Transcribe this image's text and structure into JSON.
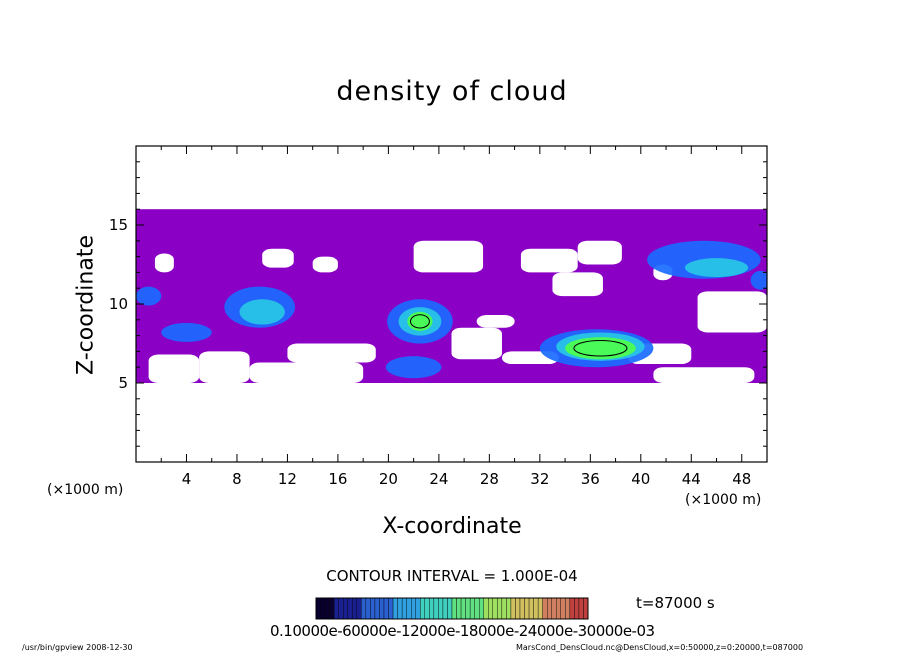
{
  "chart_data": {
    "type": "heatmap",
    "title": "density of cloud",
    "xlabel": "X-coordinate",
    "ylabel": "Z-coordinate",
    "x_unit_label": "(×1000 m)",
    "x_ticks": [
      4,
      8,
      12,
      16,
      20,
      24,
      28,
      32,
      36,
      40,
      44,
      48
    ],
    "y_ticks": [
      5,
      10,
      15
    ],
    "xlim": [
      0,
      50
    ],
    "ylim": [
      0,
      20
    ],
    "contour_interval_text": "CONTOUR INTERVAL = 1.000E-04",
    "time_text": "t=87000 s",
    "colorbar_labels_text": "0.10000e-60000e-12000e-18000e-24000e-30000e-03",
    "grid": false,
    "density_layer": {
      "z_range": [
        5,
        16
      ],
      "low_level_fill": "#8a00c4",
      "clear_regions": [
        {
          "x": [
            1.5,
            3.0
          ],
          "z": [
            12.0,
            13.2
          ]
        },
        {
          "x": [
            10.0,
            12.5
          ],
          "z": [
            12.3,
            13.5
          ]
        },
        {
          "x": [
            14.0,
            16.0
          ],
          "z": [
            12.0,
            13.0
          ]
        },
        {
          "x": [
            22.0,
            27.5
          ],
          "z": [
            12.0,
            14.0
          ]
        },
        {
          "x": [
            33.0,
            37.0
          ],
          "z": [
            10.5,
            12.0
          ]
        },
        {
          "x": [
            30.5,
            35.0
          ],
          "z": [
            12.0,
            13.5
          ]
        },
        {
          "x": [
            35.0,
            38.5
          ],
          "z": [
            12.5,
            14.0
          ]
        },
        {
          "x": [
            41.0,
            42.5
          ],
          "z": [
            11.5,
            12.5
          ]
        },
        {
          "x": [
            44.5,
            50.0
          ],
          "z": [
            8.2,
            10.8
          ]
        },
        {
          "x": [
            1.0,
            5.0
          ],
          "z": [
            5.0,
            6.8
          ]
        },
        {
          "x": [
            5.0,
            9.0
          ],
          "z": [
            5.0,
            7.0
          ]
        },
        {
          "x": [
            9.0,
            18.0
          ],
          "z": [
            5.0,
            6.3
          ]
        },
        {
          "x": [
            12.0,
            19.0
          ],
          "z": [
            6.3,
            7.5
          ]
        },
        {
          "x": [
            25.0,
            29.0
          ],
          "z": [
            6.5,
            8.5
          ]
        },
        {
          "x": [
            27.0,
            30.0
          ],
          "z": [
            8.5,
            9.3
          ]
        },
        {
          "x": [
            29.0,
            33.5
          ],
          "z": [
            6.2,
            7.0
          ]
        },
        {
          "x": [
            39.0,
            44.0
          ],
          "z": [
            6.2,
            7.5
          ]
        },
        {
          "x": [
            41.0,
            49.0
          ],
          "z": [
            5.0,
            6.0
          ]
        }
      ],
      "cells": [
        {
          "x": 22.5,
          "z": 8.9,
          "rx": 2.6,
          "rz": 1.4,
          "level": 1
        },
        {
          "x": 22.5,
          "z": 8.9,
          "rx": 1.7,
          "rz": 0.9,
          "level": 2
        },
        {
          "x": 22.5,
          "z": 8.9,
          "rx": 1.0,
          "rz": 0.6,
          "level": 3
        },
        {
          "x": 22.0,
          "z": 6.0,
          "rx": 2.2,
          "rz": 0.7,
          "level": 1
        },
        {
          "x": 36.5,
          "z": 7.2,
          "rx": 4.5,
          "rz": 1.2,
          "level": 1
        },
        {
          "x": 36.8,
          "z": 7.3,
          "rx": 3.5,
          "rz": 0.9,
          "level": 2
        },
        {
          "x": 36.8,
          "z": 7.2,
          "rx": 2.8,
          "rz": 0.7,
          "level": 3
        },
        {
          "x": 9.8,
          "z": 9.8,
          "rx": 2.8,
          "rz": 1.3,
          "level": 1
        },
        {
          "x": 10.0,
          "z": 9.5,
          "rx": 1.8,
          "rz": 0.8,
          "level": 2
        },
        {
          "x": 4.0,
          "z": 8.2,
          "rx": 2.0,
          "rz": 0.6,
          "level": 1
        },
        {
          "x": 1.0,
          "z": 10.5,
          "rx": 1.0,
          "rz": 0.6,
          "level": 1
        },
        {
          "x": 45.0,
          "z": 12.8,
          "rx": 4.5,
          "rz": 1.2,
          "level": 1
        },
        {
          "x": 46.0,
          "z": 12.3,
          "rx": 2.5,
          "rz": 0.6,
          "level": 2
        },
        {
          "x": 49.5,
          "z": 11.5,
          "rx": 0.8,
          "rz": 0.6,
          "level": 1
        }
      ]
    }
  },
  "footer": {
    "left": "/usr/bin/gpview   2008-12-30",
    "right": "MarsCond_DensCloud.nc@DensCloud,x=0:50000,z=0:20000,t=087000"
  },
  "colors": {
    "level0": "#8a00c4",
    "level1": "#1a6bff",
    "level2": "#28c7e6",
    "level3": "#4cff4c"
  }
}
